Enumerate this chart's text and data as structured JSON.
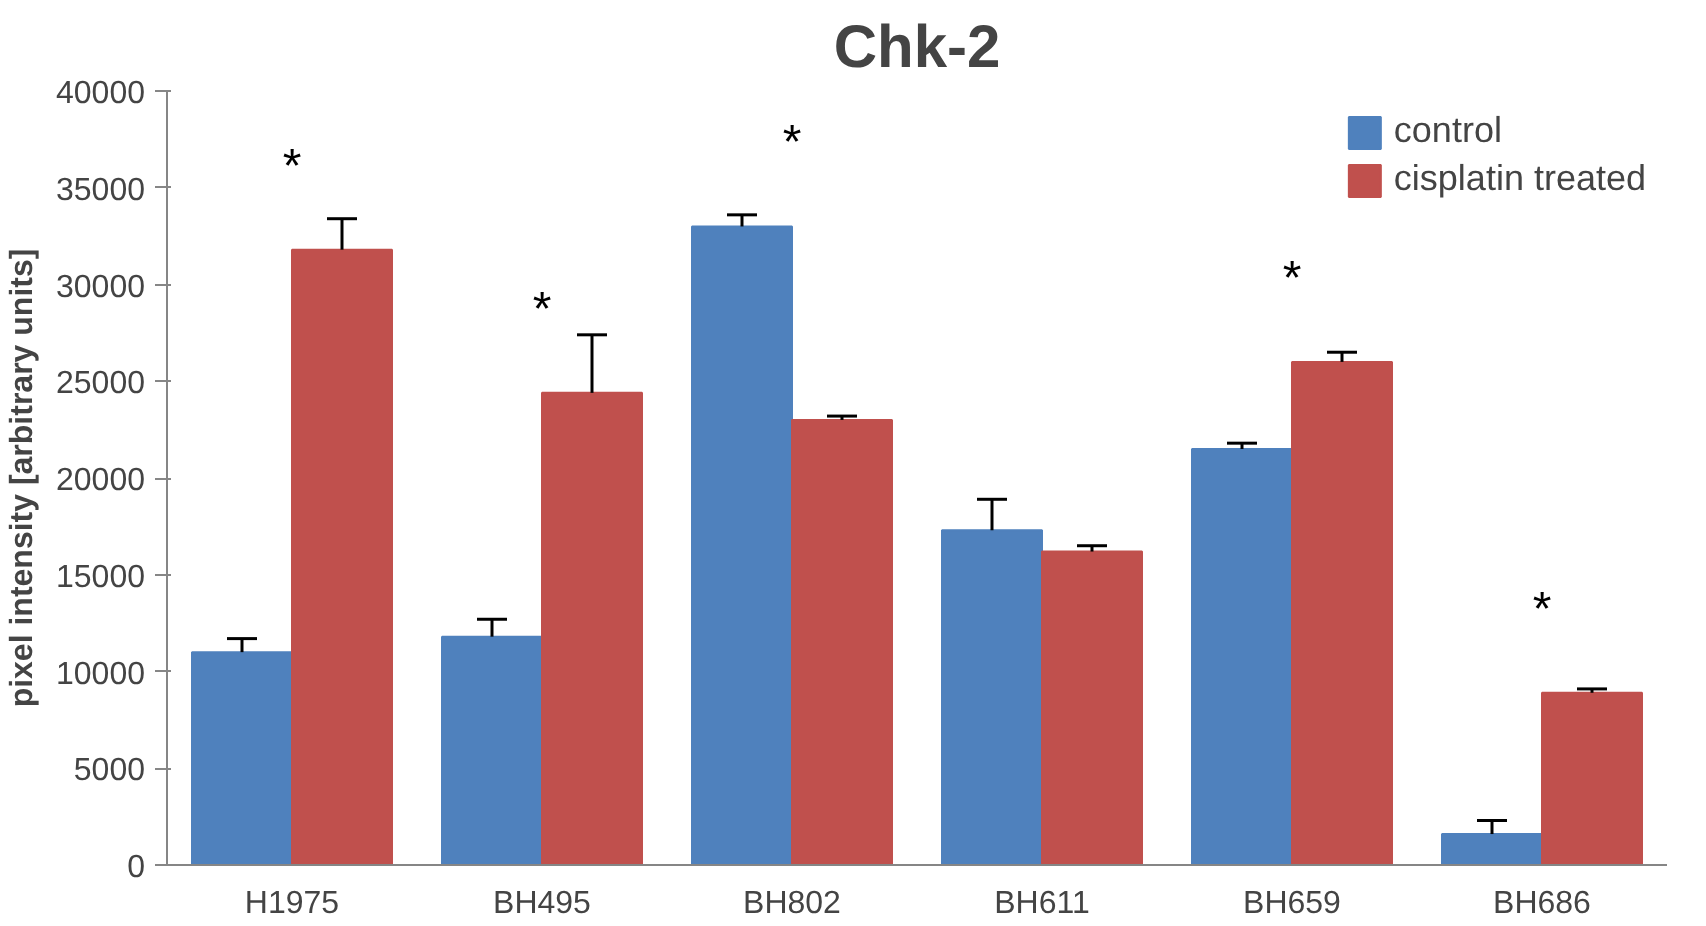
{
  "chart_data": {
    "type": "bar",
    "title": "Chk-2",
    "ylabel": "pixel intensity [arbitrary units]",
    "categories": [
      "H1975",
      "BH495",
      "BH802",
      "BH611",
      "BH659",
      "BH686"
    ],
    "series": [
      {
        "name": "control",
        "color": "#4f81bd",
        "values": [
          11000,
          11800,
          33000,
          17300,
          21500,
          1600
        ],
        "errors": [
          [
            11000,
            11700
          ],
          [
            11800,
            12700
          ],
          [
            33000,
            33600
          ],
          [
            17300,
            18900
          ],
          [
            21500,
            21800
          ],
          [
            1600,
            2300
          ]
        ]
      },
      {
        "name": "cisplatin treated",
        "color": "#c0504d",
        "values": [
          31800,
          24400,
          23000,
          16200,
          26000,
          8900
        ],
        "errors": [
          [
            31800,
            33400
          ],
          [
            24400,
            27400
          ],
          [
            23000,
            23200
          ],
          [
            16200,
            16500
          ],
          [
            26000,
            26500
          ],
          [
            8900,
            9100
          ]
        ]
      }
    ],
    "annotations": [
      {
        "text": "*",
        "x": "H1975",
        "y": 31800
      },
      {
        "text": "*",
        "x": "BH495",
        "y": 24400
      },
      {
        "text": "*",
        "x": "BH802",
        "y": 33000
      },
      {
        "text": "*",
        "x": "BH659",
        "y": 26000
      },
      {
        "text": "*",
        "x": "BH686",
        "y": 8900
      }
    ],
    "ylim": [
      0,
      40000
    ],
    "yticks": [
      0,
      5000,
      10000,
      15000,
      20000,
      25000,
      30000,
      35000,
      40000
    ],
    "grid": false,
    "legend": "top right"
  }
}
